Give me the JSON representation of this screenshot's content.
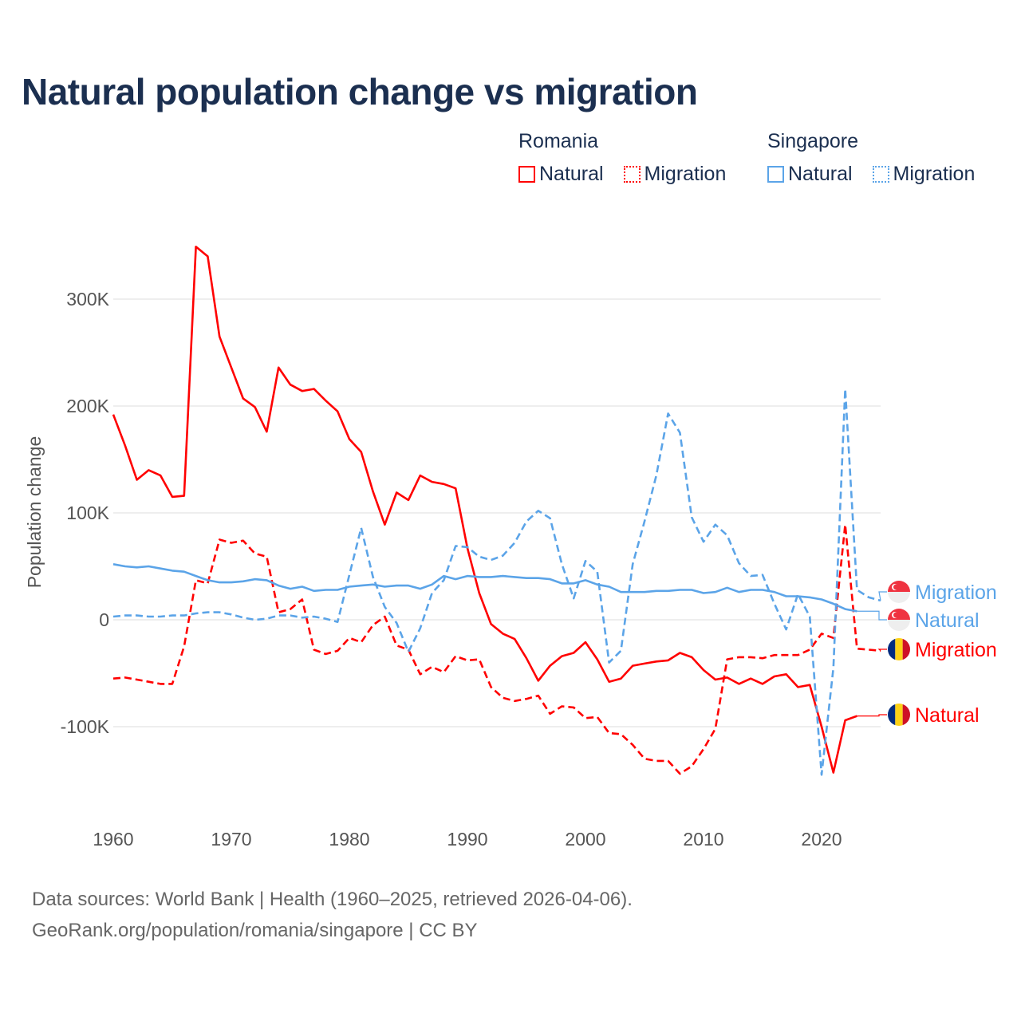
{
  "title": "Natural population change vs migration",
  "legend": {
    "groups": [
      {
        "name": "Romania",
        "items": [
          {
            "label": "Natural",
            "style": "solid"
          },
          {
            "label": "Migration",
            "style": "dotted"
          }
        ],
        "color": "#ff0000"
      },
      {
        "name": "Singapore",
        "items": [
          {
            "label": "Natural",
            "style": "solid"
          },
          {
            "label": "Migration",
            "style": "dotted"
          }
        ],
        "color": "#5ba4e8"
      }
    ]
  },
  "footer": {
    "line1": "Data sources: World Bank | Health (1960–2025, retrieved 2026-04-06).",
    "line2": "GeoRank.org/population/romania/singapore | CC BY"
  },
  "chart_data": {
    "type": "line",
    "title": "Natural population change vs migration",
    "xlabel": "",
    "ylabel": "Population change",
    "xlim": [
      1960,
      2025
    ],
    "ylim": [
      -160000,
      360000
    ],
    "xticks": [
      1960,
      1970,
      1980,
      1990,
      2000,
      2010,
      2020
    ],
    "yticks": [
      {
        "value": -100000,
        "label": "-100K"
      },
      {
        "value": 0,
        "label": "0"
      },
      {
        "value": 100000,
        "label": "100K"
      },
      {
        "value": 200000,
        "label": "200K"
      },
      {
        "value": 300000,
        "label": "300K"
      }
    ],
    "grid": true,
    "legend_position": "top-right",
    "series": [
      {
        "name": "Romania Natural",
        "country": "Romania",
        "end_label": "Natural",
        "color": "#ff0000",
        "dash": false,
        "start_year": 1960,
        "values_k": [
          192,
          163,
          131,
          140,
          135,
          115,
          116,
          349,
          340,
          265,
          236,
          207,
          199,
          176,
          236,
          220,
          214,
          216,
          205,
          195,
          169,
          157,
          120,
          89,
          119,
          112,
          135,
          129,
          127,
          123,
          67,
          25,
          -4,
          -13,
          -18,
          -36,
          -57,
          -43,
          -34,
          -31,
          -21,
          -37,
          -58,
          -55,
          -43,
          -41,
          -39,
          -38,
          -31,
          -35,
          -47,
          -56,
          -54,
          -60,
          -55,
          -60,
          -53,
          -51,
          -63,
          -61,
          -100,
          -143,
          -94,
          -90
        ]
      },
      {
        "name": "Romania Migration",
        "country": "Romania",
        "end_label": "Migration",
        "color": "#ff0000",
        "dash": true,
        "start_year": 1960,
        "values_k": [
          -55,
          -54,
          -56,
          -58,
          -60,
          -60,
          -25,
          37,
          34,
          75,
          72,
          74,
          62,
          59,
          7,
          10,
          19,
          -28,
          -32,
          -29,
          -17,
          -21,
          -5,
          3,
          -24,
          -28,
          -51,
          -44,
          -49,
          -34,
          -38,
          -37,
          -63,
          -73,
          -76,
          -74,
          -71,
          -88,
          -81,
          -82,
          -92,
          -91,
          -106,
          -107,
          -117,
          -130,
          -132,
          -132,
          -144,
          -137,
          -121,
          -102,
          -37,
          -35,
          -35,
          -36,
          -33,
          -33,
          -33,
          -28,
          -13,
          -17,
          89,
          -27,
          -28,
          -29
        ]
      },
      {
        "name": "Singapore Natural",
        "country": "Singapore",
        "end_label": "Natural",
        "color": "#5ba4e8",
        "dash": false,
        "start_year": 1960,
        "values_k": [
          52,
          50,
          49,
          50,
          48,
          46,
          45,
          41,
          37,
          35,
          35,
          36,
          38,
          37,
          32,
          29,
          31,
          27,
          28,
          28,
          31,
          32,
          33,
          31,
          32,
          32,
          29,
          33,
          41,
          38,
          41,
          40,
          40,
          41,
          40,
          39,
          39,
          38,
          34,
          34,
          37,
          33,
          31,
          26,
          26,
          26,
          27,
          27,
          28,
          28,
          25,
          26,
          30,
          26,
          28,
          28,
          26,
          22,
          22,
          21,
          19,
          15,
          10,
          8
        ]
      },
      {
        "name": "Singapore Migration",
        "country": "Singapore",
        "end_label": "Migration",
        "color": "#5ba4e8",
        "dash": true,
        "start_year": 1960,
        "values_k": [
          3,
          4,
          4,
          3,
          3,
          4,
          4,
          6,
          7,
          7,
          5,
          2,
          0,
          1,
          4,
          4,
          2,
          3,
          1,
          -2,
          42,
          86,
          40,
          12,
          -3,
          -30,
          -8,
          25,
          37,
          69,
          68,
          59,
          56,
          60,
          72,
          92,
          102,
          95,
          52,
          20,
          55,
          45,
          -40,
          -29,
          52,
          92,
          135,
          193,
          175,
          96,
          73,
          89,
          79,
          53,
          41,
          42,
          15,
          -9,
          24,
          3,
          -145,
          -45,
          216,
          28,
          21,
          18
        ]
      }
    ]
  }
}
